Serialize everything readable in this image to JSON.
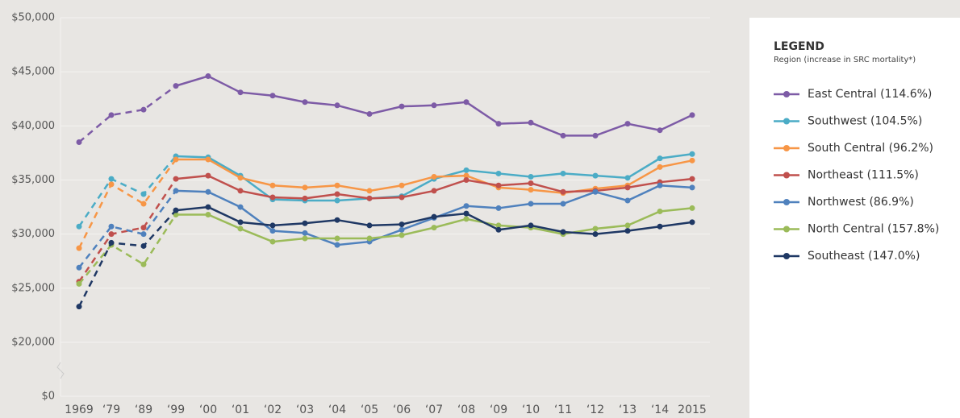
{
  "chart_data": {
    "type": "line",
    "legend_title": "LEGEND",
    "legend_subtitle": "Region (increase in SRC mortality*)",
    "legend_position": "right",
    "categories": [
      "1969",
      "‘79",
      "‘89",
      "‘99",
      "‘00",
      "‘01",
      "‘02",
      "‘03",
      "‘04",
      "‘05",
      "‘06",
      "‘07",
      "‘08",
      "‘09",
      "‘10",
      "‘11",
      "‘12",
      "‘13",
      "‘14",
      "2015"
    ],
    "dashed_through_index": 3,
    "ylim": [
      0,
      50000
    ],
    "axis_break": [
      0,
      20000
    ],
    "yticks": [
      {
        "value": 0,
        "label": "$0"
      },
      {
        "value": 20000,
        "label": "$20,000"
      },
      {
        "value": 25000,
        "label": "$25,000"
      },
      {
        "value": 30000,
        "label": "$30,000"
      },
      {
        "value": 35000,
        "label": "$35,000"
      },
      {
        "value": 40000,
        "label": "$40,000"
      },
      {
        "value": 45000,
        "label": "$45,000"
      },
      {
        "value": 50000,
        "label": "$50,000"
      }
    ],
    "grid": true,
    "series": [
      {
        "name": "East Central (114.6%)",
        "color": "#7d5ba6",
        "values": [
          38500,
          41000,
          41500,
          43700,
          44600,
          43100,
          42800,
          42200,
          41900,
          41100,
          41800,
          41900,
          42200,
          40200,
          40300,
          39100,
          39100,
          40200,
          39600,
          41000
        ]
      },
      {
        "name": "Southwest (104.5%)",
        "color": "#4bacc6",
        "values": [
          30700,
          35100,
          33700,
          37200,
          37100,
          35400,
          33200,
          33100,
          33100,
          33300,
          33500,
          35100,
          35900,
          35600,
          35300,
          35600,
          35400,
          35200,
          37000,
          37400
        ]
      },
      {
        "name": "South Central (96.2%)",
        "color": "#f79646",
        "values": [
          28700,
          34600,
          32800,
          36900,
          36900,
          35200,
          34500,
          34300,
          34500,
          34000,
          34500,
          35300,
          35400,
          34300,
          34100,
          33800,
          34200,
          34500,
          36200,
          36800
        ]
      },
      {
        "name": "Northeast (111.5%)",
        "color": "#c0504d",
        "values": [
          25600,
          30000,
          30600,
          35100,
          35400,
          34000,
          33400,
          33300,
          33700,
          33300,
          33400,
          34000,
          35000,
          34500,
          34700,
          33900,
          34000,
          34300,
          34800,
          35100
        ]
      },
      {
        "name": "Northwest (86.9%)",
        "color": "#4f81bd",
        "values": [
          26900,
          30700,
          30000,
          34000,
          33900,
          32500,
          30300,
          30100,
          29000,
          29300,
          30400,
          31500,
          32600,
          32400,
          32800,
          32800,
          33900,
          33100,
          34500,
          34300
        ]
      },
      {
        "name": "North Central (157.8%)",
        "color": "#9bbb59",
        "values": [
          25400,
          29000,
          27200,
          31800,
          31800,
          30500,
          29300,
          29600,
          29600,
          29600,
          29900,
          30600,
          31400,
          30800,
          30600,
          30000,
          30500,
          30800,
          32100,
          32400
        ]
      },
      {
        "name": "Southeast (147.0%)",
        "color": "#1f3864",
        "values": [
          23300,
          29200,
          28900,
          32200,
          32500,
          31100,
          30800,
          31000,
          31300,
          30800,
          30900,
          31600,
          31900,
          30400,
          30800,
          30200,
          30000,
          30300,
          30700,
          31100
        ]
      }
    ]
  }
}
